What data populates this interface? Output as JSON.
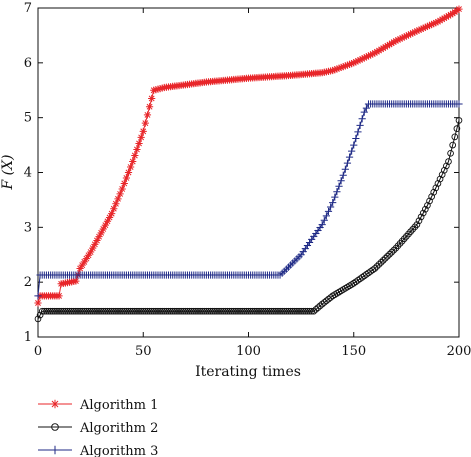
{
  "chart_data": {
    "type": "line",
    "xlabel": "Iterating times",
    "ylabel": "F (X)",
    "xlim": [
      0,
      200
    ],
    "ylim": [
      1,
      7
    ],
    "xticks": [
      0,
      50,
      100,
      150,
      200
    ],
    "yticks": [
      1,
      2,
      3,
      4,
      5,
      6,
      7
    ],
    "legend_position": "bottom-left",
    "series": [
      {
        "name": "Algorithm 1",
        "color": "#e8262a",
        "marker": "star",
        "points": [
          [
            0,
            1.62
          ],
          [
            1,
            1.75
          ],
          [
            10,
            1.75
          ],
          [
            11,
            1.97
          ],
          [
            18,
            2.02
          ],
          [
            20,
            2.25
          ],
          [
            25,
            2.55
          ],
          [
            30,
            2.9
          ],
          [
            35,
            3.25
          ],
          [
            40,
            3.7
          ],
          [
            45,
            4.2
          ],
          [
            50,
            4.75
          ],
          [
            53,
            5.2
          ],
          [
            55,
            5.5
          ],
          [
            60,
            5.55
          ],
          [
            70,
            5.6
          ],
          [
            80,
            5.65
          ],
          [
            100,
            5.72
          ],
          [
            120,
            5.77
          ],
          [
            135,
            5.82
          ],
          [
            140,
            5.86
          ],
          [
            150,
            6.0
          ],
          [
            160,
            6.18
          ],
          [
            170,
            6.4
          ],
          [
            180,
            6.58
          ],
          [
            190,
            6.75
          ],
          [
            197,
            6.9
          ],
          [
            200,
            6.98
          ]
        ]
      },
      {
        "name": "Algorithm 2",
        "color": "#111111",
        "marker": "circle",
        "points": [
          [
            0,
            1.33
          ],
          [
            2,
            1.47
          ],
          [
            10,
            1.47
          ],
          [
            100,
            1.47
          ],
          [
            131,
            1.47
          ],
          [
            135,
            1.6
          ],
          [
            140,
            1.75
          ],
          [
            150,
            1.98
          ],
          [
            160,
            2.25
          ],
          [
            170,
            2.62
          ],
          [
            180,
            3.05
          ],
          [
            185,
            3.4
          ],
          [
            190,
            3.8
          ],
          [
            195,
            4.2
          ],
          [
            198,
            4.65
          ],
          [
            200,
            4.95
          ]
        ]
      },
      {
        "name": "Algorithm 3",
        "color": "#1f2a86",
        "marker": "plus",
        "points": [
          [
            0,
            1.75
          ],
          [
            1,
            2.13
          ],
          [
            100,
            2.13
          ],
          [
            115,
            2.13
          ],
          [
            117,
            2.2
          ],
          [
            125,
            2.5
          ],
          [
            130,
            2.78
          ],
          [
            135,
            3.05
          ],
          [
            140,
            3.45
          ],
          [
            145,
            3.95
          ],
          [
            150,
            4.5
          ],
          [
            155,
            5.1
          ],
          [
            157,
            5.25
          ],
          [
            175,
            5.25
          ],
          [
            200,
            5.25
          ]
        ]
      }
    ]
  }
}
